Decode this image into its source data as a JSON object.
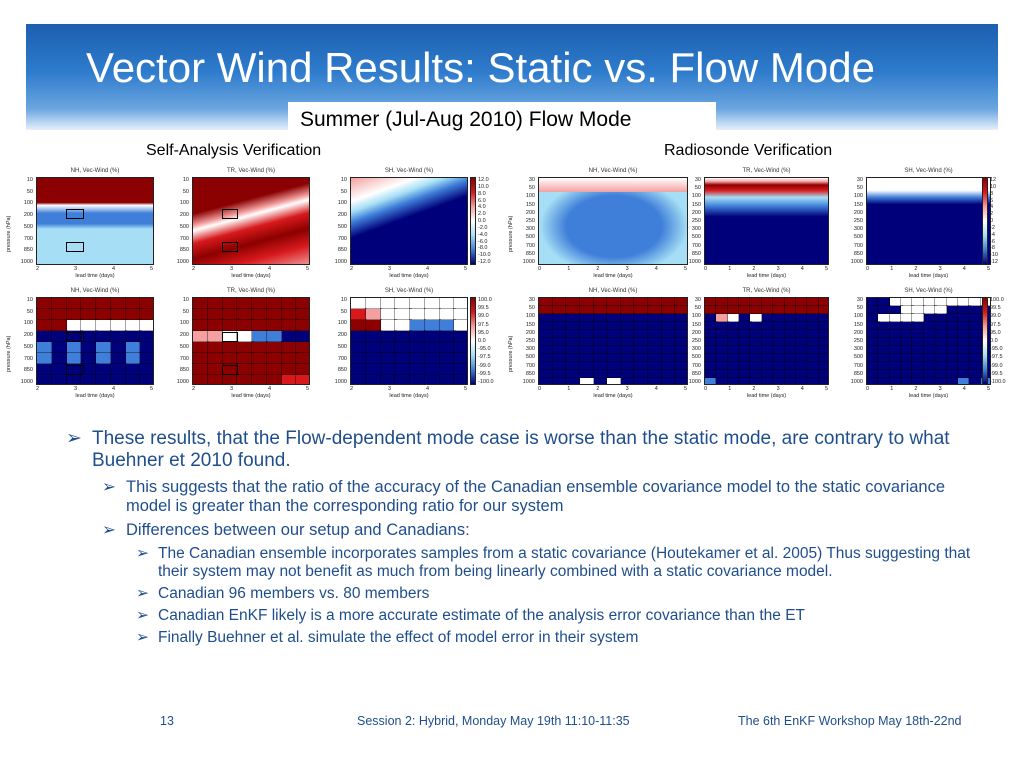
{
  "slide": {
    "title": "Vector Wind Results: Static vs. Flow Mode",
    "subtitle": "Summer (Jul-Aug 2010) Flow Mode",
    "label_left": "Self-Analysis Verification",
    "label_right": "Radiosonde Verification"
  },
  "panels_common": {
    "ylabel": "pressure (hPa)",
    "xlabel": "lead time (days)"
  },
  "panels": [
    {
      "title": "NH, Vec-Wind (%)"
    },
    {
      "title": "TR, Vec-Wind (%)"
    },
    {
      "title": "SH, Vec-Wind (%)"
    },
    {
      "title": "NH, Vec-Wind (%)"
    },
    {
      "title": "TR, Vec-Wind (%)"
    },
    {
      "title": "SH, Vec-Wind (%)"
    },
    {
      "title": "NH, Vec-Wind (%)"
    },
    {
      "title": "TR, Vec-Wind (%)"
    },
    {
      "title": "SH, Vec-Wind (%)"
    },
    {
      "title": "NH, Vec-Wind (%)"
    },
    {
      "title": "TR, Vec-Wind (%)"
    },
    {
      "title": "SH, Vec-Wind (%)"
    }
  ],
  "ticks": {
    "self_y": [
      "10",
      "50",
      "100",
      "200",
      "500",
      "700",
      "850",
      "1000"
    ],
    "sonde_y": [
      "30",
      "50",
      "100",
      "150",
      "200",
      "250",
      "300",
      "500",
      "700",
      "850",
      "1000"
    ],
    "self_x": [
      "2",
      "3",
      "4",
      "5"
    ],
    "sonde_x": [
      "0",
      "1",
      "2",
      "3",
      "4",
      "5"
    ],
    "cbar_self_top": [
      "12.0",
      "10.0",
      "8.0",
      "6.0",
      "4.0",
      "2.0",
      "0.0",
      "-2.0",
      "-4.0",
      "-6.0",
      "-8.0",
      "-10.0",
      "-12.0"
    ],
    "cbar_sonde_top": [
      "12",
      "10",
      "8",
      "6",
      "4",
      "2",
      "0",
      "-2",
      "-4",
      "-6",
      "-8",
      "-10",
      "-12"
    ],
    "cbar_sig": [
      "100.0",
      "99.5",
      "99.0",
      "97.5",
      "95.0",
      "0.0",
      "-95.0",
      "-97.5",
      "-99.0",
      "-99.5",
      "-100.0"
    ]
  },
  "colors": {
    "dark_red": "#8b0000",
    "red": "#d7191c",
    "light_red": "#f4a0a0",
    "white": "#ffffff",
    "light_blue": "#a6dff5",
    "mid_blue": "#3f7fd9",
    "dark_blue": "#00007a",
    "text_blue": "#1f4e8c"
  },
  "bullets": [
    {
      "level": 1,
      "text": "These results, that the Flow-dependent mode case is worse than the static mode, are contrary to what Buehner et 2010 found."
    },
    {
      "level": 2,
      "text": "This suggests that the ratio of the accuracy of the Canadian ensemble covariance model to the static covariance model is greater than the corresponding ratio for our system"
    },
    {
      "level": 2,
      "text": "Differences between our setup and Canadians:"
    },
    {
      "level": 3,
      "text": "The Canadian ensemble incorporates samples from a static covariance (Houtekamer et al. 2005) Thus suggesting that their system may not benefit as much from being linearly combined with a static covariance model."
    },
    {
      "level": 3,
      "text": "Canadian 96 members vs. 80 members"
    },
    {
      "level": 3,
      "text": "Canadian EnKF likely is a more accurate estimate of the analysis error covariance than the ET"
    },
    {
      "level": 3,
      "text": "Finally Buehner et al. simulate the effect of model error in their system"
    }
  ],
  "footer": {
    "page": "13",
    "session": "Session 2: Hybrid, Monday May 19th 11:10-11:35",
    "workshop": "The 6th EnKF Workshop May 18th-22nd"
  },
  "bullet_glyph": "➢"
}
